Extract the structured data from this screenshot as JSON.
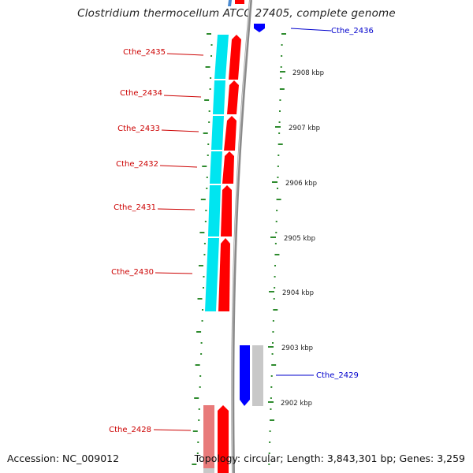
{
  "title": "Clostridium thermocellum ATCC 27405, complete genome",
  "footer": {
    "accession": "Accession: NC_009012",
    "summary": "Topology: circular; Length: 3,843,301 bp; Genes: 3,259"
  },
  "colors": {
    "forward_cds": "#ff0000",
    "forward_rna": "#e87a7a",
    "reverse_cds": "#0000ff",
    "cyan_track": "#00e5f0",
    "gray_track": "#c8c8c8",
    "backbone": "#8a8a8a",
    "tick": "#2e8b2e",
    "red_label": "#cc0000",
    "blue_label": "#0000cc"
  },
  "gene_labels": [
    {
      "id": "Cthe_2436",
      "strand": "reverse"
    },
    {
      "id": "Cthe_2435",
      "strand": "forward"
    },
    {
      "id": "Cthe_2434",
      "strand": "forward"
    },
    {
      "id": "Cthe_2433",
      "strand": "forward"
    },
    {
      "id": "Cthe_2432",
      "strand": "forward"
    },
    {
      "id": "Cthe_2431",
      "strand": "forward"
    },
    {
      "id": "Cthe_2430",
      "strand": "forward"
    },
    {
      "id": "Cthe_2429",
      "strand": "reverse"
    },
    {
      "id": "Cthe_2428",
      "strand": "forward"
    }
  ],
  "kbp_ticks": [
    "2908 kbp",
    "2907 kbp",
    "2906 kbp",
    "2905 kbp",
    "2904 kbp",
    "2903 kbp",
    "2902 kbp"
  ]
}
